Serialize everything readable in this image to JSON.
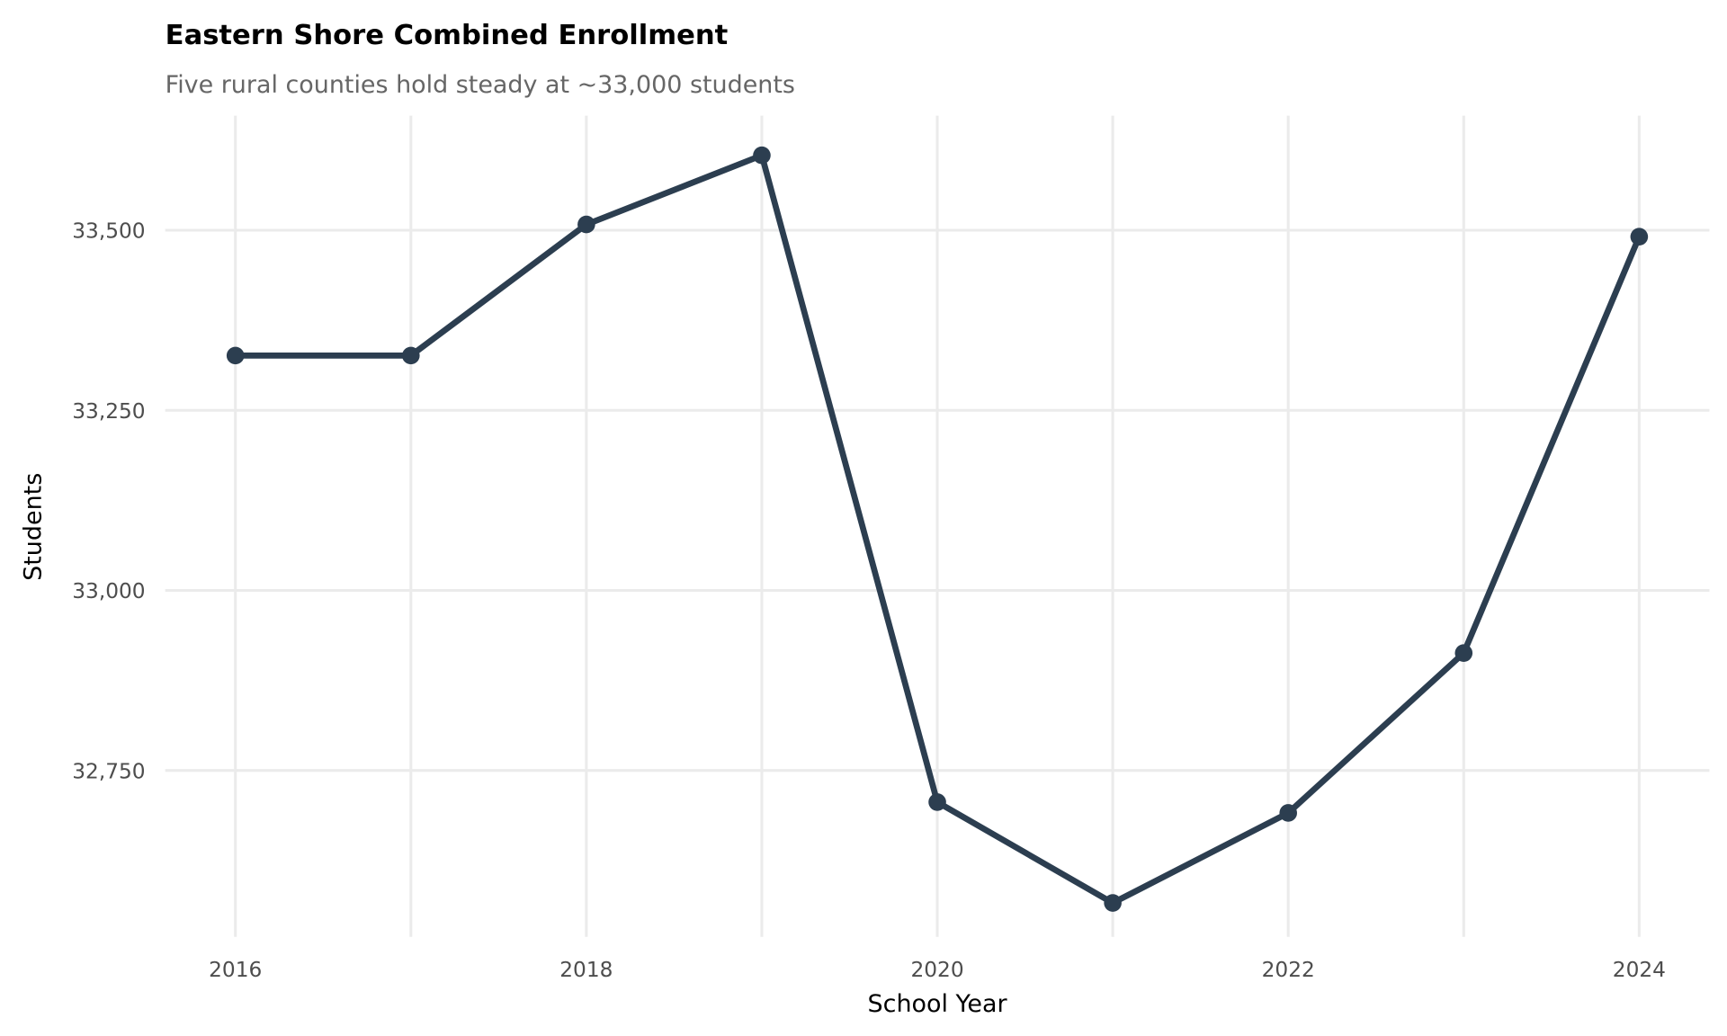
{
  "chart_data": {
    "type": "line",
    "title": "Eastern Shore Combined Enrollment",
    "subtitle": "Five rural counties hold steady at ~33,000 students",
    "xlabel": "School Year",
    "ylabel": "Students",
    "x": [
      2016,
      2017,
      2018,
      2019,
      2020,
      2021,
      2022,
      2023,
      2024
    ],
    "values": [
      33326,
      33326,
      33508,
      33604,
      32706,
      32566,
      32691,
      32913,
      33491
    ],
    "xticks": [
      2016,
      2018,
      2020,
      2022,
      2024
    ],
    "xtick_labels": [
      "2016",
      "2018",
      "2020",
      "2022",
      "2024"
    ],
    "yticks": [
      32750,
      33000,
      33250,
      33500
    ],
    "ytick_labels": [
      "32,750",
      "33,000",
      "33,250",
      "33,500"
    ],
    "xlim": [
      2015.6,
      2024.4
    ],
    "ylim": [
      32519,
      33659
    ],
    "grid": true,
    "line_color": "#2c3e50"
  }
}
